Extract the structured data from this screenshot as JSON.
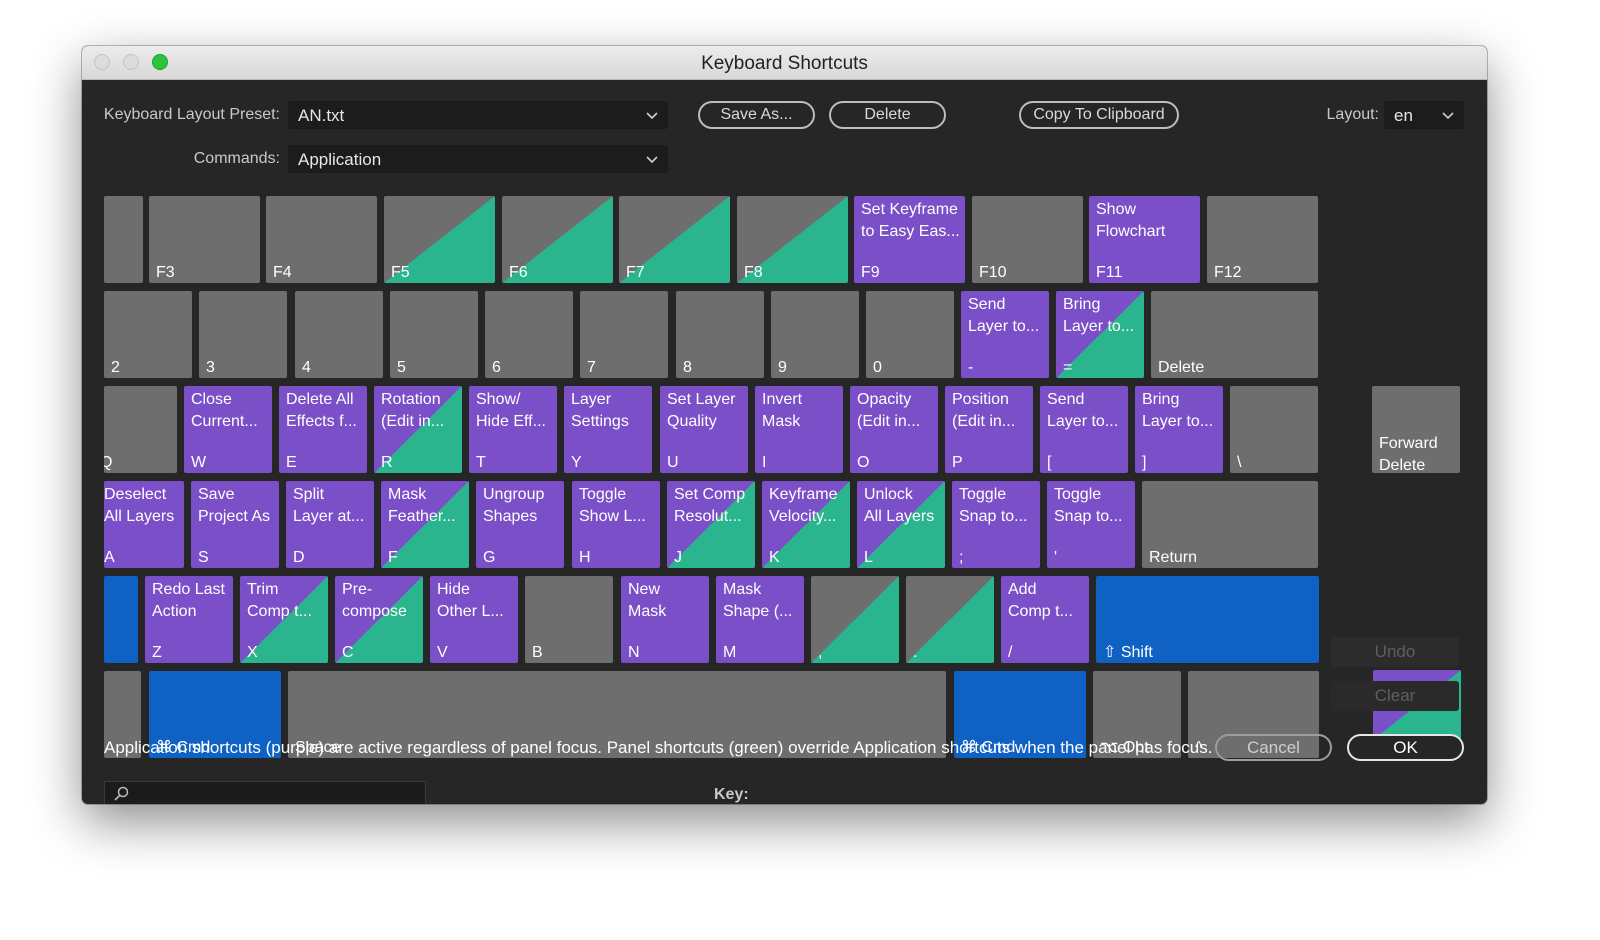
{
  "window": {
    "title": "Keyboard Shortcuts"
  },
  "toolbar": {
    "preset_label": "Keyboard Layout Preset:",
    "preset_value": "AN.txt",
    "commands_label": "Commands:",
    "commands_value": "Application",
    "save_as": "Save As...",
    "delete": "Delete",
    "copy": "Copy To Clipboard",
    "layout_label": "Layout:",
    "layout_value": "en"
  },
  "colors": {
    "application": "#7a4fc8",
    "panel": "#2ab58e",
    "modifier": "#0f62c3",
    "unassigned": "#6e6e6e"
  },
  "keys": {
    "f3": {
      "cap": "F3"
    },
    "f4": {
      "cap": "F4"
    },
    "f5": {
      "cap": "F5"
    },
    "f6": {
      "cap": "F6"
    },
    "f7": {
      "cap": "F7"
    },
    "f8": {
      "cap": "F8"
    },
    "f9": {
      "cap": "F9",
      "cmd": "Set Keyframe\nto Easy Eas..."
    },
    "f10": {
      "cap": "F10"
    },
    "f11": {
      "cap": "F11",
      "cmd": "Show\nFlowchart"
    },
    "f12": {
      "cap": "F12"
    },
    "n2": {
      "cap": "2"
    },
    "n3": {
      "cap": "3"
    },
    "n4": {
      "cap": "4"
    },
    "n5": {
      "cap": "5"
    },
    "n6": {
      "cap": "6"
    },
    "n7": {
      "cap": "7"
    },
    "n8": {
      "cap": "8"
    },
    "n9": {
      "cap": "9"
    },
    "n0": {
      "cap": "0"
    },
    "minus": {
      "cap": "-",
      "cmd": "Send\nLayer to..."
    },
    "equals": {
      "cap": "=",
      "cmd": "Bring\nLayer to..."
    },
    "delete": {
      "cap": "Delete"
    },
    "q": {
      "cap": "Q"
    },
    "w": {
      "cap": "W",
      "cmd": "Close\nCurrent..."
    },
    "e": {
      "cap": "E",
      "cmd": "Delete All\nEffects f..."
    },
    "r": {
      "cap": "R",
      "cmd": "Rotation\n(Edit in..."
    },
    "t": {
      "cap": "T",
      "cmd": "Show/\nHide Eff..."
    },
    "y": {
      "cap": "Y",
      "cmd": "Layer\nSettings"
    },
    "u": {
      "cap": "U",
      "cmd": "Set Layer\nQuality"
    },
    "i": {
      "cap": "I",
      "cmd": "Invert\nMask"
    },
    "o": {
      "cap": "O",
      "cmd": "Opacity\n(Edit in..."
    },
    "p": {
      "cap": "P",
      "cmd": "Position\n(Edit in..."
    },
    "lbracket": {
      "cap": "[",
      "cmd": "Send\nLayer to..."
    },
    "rbracket": {
      "cap": "]",
      "cmd": "Bring\nLayer to..."
    },
    "backslash": {
      "cap": "\\"
    },
    "fwddel": {
      "cap": "",
      "cmd": "\n\nForward\nDelete"
    },
    "a": {
      "cap": "A",
      "cmd": "Deselect\nAll Layers"
    },
    "s": {
      "cap": "S",
      "cmd": "Save\nProject As"
    },
    "d": {
      "cap": "D",
      "cmd": "Split\nLayer at..."
    },
    "f": {
      "cap": "F",
      "cmd": "Mask\nFeather..."
    },
    "g": {
      "cap": "G",
      "cmd": "Ungroup\nShapes"
    },
    "h": {
      "cap": "H",
      "cmd": "Toggle\nShow L..."
    },
    "j": {
      "cap": "J",
      "cmd": "Set Comp\nResolut..."
    },
    "k": {
      "cap": "K",
      "cmd": "Keyframe\nVelocity..."
    },
    "l": {
      "cap": "L",
      "cmd": "Unlock\nAll Layers"
    },
    "semicolon": {
      "cap": ";",
      "cmd": "Toggle\nSnap to..."
    },
    "quote": {
      "cap": "'",
      "cmd": "Toggle\nSnap to..."
    },
    "return": {
      "cap": "Return"
    },
    "lshift": {
      "cap": ""
    },
    "z": {
      "cap": "Z",
      "cmd": "Redo Last\nAction"
    },
    "x": {
      "cap": "X",
      "cmd": "Trim\nComp t..."
    },
    "c": {
      "cap": "C",
      "cmd": "Pre-\ncompose"
    },
    "v": {
      "cap": "V",
      "cmd": "Hide\nOther L..."
    },
    "b": {
      "cap": "B"
    },
    "n": {
      "cap": "N",
      "cmd": "New\nMask"
    },
    "m": {
      "cap": "M",
      "cmd": "Mask\nShape (..."
    },
    "comma": {
      "cap": ","
    },
    "period": {
      "cap": "."
    },
    "slash": {
      "cap": "/",
      "cmd": "Add\nComp t..."
    },
    "rshift": {
      "cap": "⇧ Shift"
    },
    "fn": {
      "cap": ""
    },
    "lcmd": {
      "cap": "⌘ Cmd"
    },
    "space": {
      "cap": "Space"
    },
    "rcmd": {
      "cap": "⌘ Cmd"
    },
    "ropt": {
      "cap": "⌥ Opt"
    },
    "rctrl": {
      "cap": "^"
    }
  },
  "side": {
    "undo": "Undo",
    "clear": "Clear"
  },
  "footer": {
    "note": "Application shortcuts (purple) are active regardless of panel focus. Panel shortcuts (green) override Application shortcuts when the panel has focus.",
    "cancel": "Cancel",
    "ok": "OK",
    "key_label": "Key:"
  }
}
